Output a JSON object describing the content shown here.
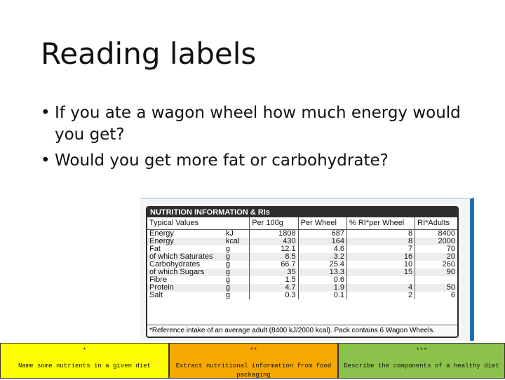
{
  "slide": {
    "title": "Reading labels",
    "bullets": [
      "If you ate a wagon wheel how much energy would you get?",
      "Would you get more fat or carbohydrate?"
    ]
  },
  "nutrition_label": {
    "heading": "NUTRITION INFORMATION & RIs",
    "columns": [
      "Typical Values",
      "",
      "Per 100g",
      "Per Wheel",
      "% RI*per Wheel",
      "RI*Adults"
    ],
    "rows": [
      {
        "name": "Energy",
        "unit": "kJ",
        "per100g": "1808",
        "per_wheel": "687",
        "ri_pct": "8",
        "ri_adults": "8400"
      },
      {
        "name": "Energy",
        "unit": "kcal",
        "per100g": "430",
        "per_wheel": "164",
        "ri_pct": "8",
        "ri_adults": "2000"
      },
      {
        "name": "Fat",
        "unit": "g",
        "per100g": "12.1",
        "per_wheel": "4.6",
        "ri_pct": "7",
        "ri_adults": "70"
      },
      {
        "name": "of which Saturates",
        "unit": "g",
        "per100g": "8.5",
        "per_wheel": "3.2",
        "ri_pct": "16",
        "ri_adults": "20"
      },
      {
        "name": "Carbohydrates",
        "unit": "g",
        "per100g": "66.7",
        "per_wheel": "25.4",
        "ri_pct": "10",
        "ri_adults": "260"
      },
      {
        "name": "of which Sugars",
        "unit": "g",
        "per100g": "35",
        "per_wheel": "13.3",
        "ri_pct": "15",
        "ri_adults": "90"
      },
      {
        "name": "Fibre",
        "unit": "g",
        "per100g": "1.5",
        "per_wheel": "0.6",
        "ri_pct": "",
        "ri_adults": ""
      },
      {
        "name": "Protein",
        "unit": "g",
        "per100g": "4.7",
        "per_wheel": "1.9",
        "ri_pct": "4",
        "ri_adults": "50"
      },
      {
        "name": "Salt",
        "unit": "g",
        "per100g": "0.3",
        "per_wheel": "0.1",
        "ri_pct": "2",
        "ri_adults": "6"
      }
    ],
    "footnote": "*Reference intake of an average adult (8400 kJ/2000 kcal). Pack contains 6 Wagon Wheels."
  },
  "objectives": [
    {
      "stars": "*",
      "text": "Name some nutrients in a given diet",
      "color": "#ffff00"
    },
    {
      "stars": "**",
      "text": "Extract nutritional information from food packaging",
      "color": "#f5a800"
    },
    {
      "stars": "***",
      "text": "Describe the components of a healthy diet",
      "color": "#8bc34a"
    }
  ]
}
